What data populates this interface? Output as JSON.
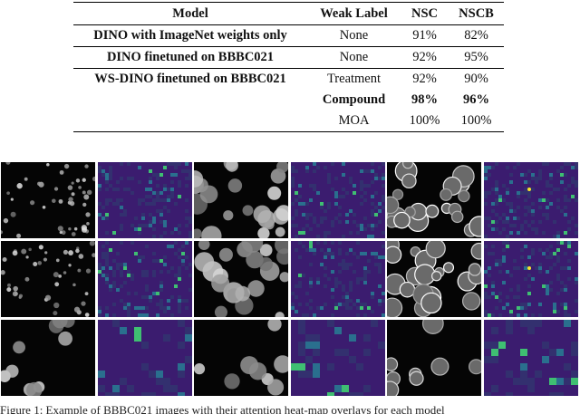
{
  "table": {
    "headers": [
      "Model",
      "Weak Label",
      "NSC",
      "NSCB"
    ],
    "rows": [
      {
        "model": "DINO with ImageNet weights only",
        "weak_label": "None",
        "nsc": "91%",
        "nscb": "82%"
      },
      {
        "model": "DINO finetuned on BBBC021",
        "weak_label": "None",
        "nsc": "92%",
        "nscb": "95%"
      },
      {
        "model": "WS-DINO finetuned on BBBC021",
        "weak_label": "Treatment",
        "nsc": "92%",
        "nscb": "90%"
      },
      {
        "model": "",
        "weak_label": "Compound",
        "nsc": "98%",
        "nscb": "96%"
      },
      {
        "model": "",
        "weak_label": "MOA",
        "nsc": "100%",
        "nscb": "100%"
      }
    ]
  },
  "colors": {
    "heatmap_base": "#3b1c6f",
    "heatmap_mid": "#2a6f8e",
    "heatmap_high": "#3fbf72",
    "heatmap_peak": "#f6e52b"
  },
  "caption": "Figure 1: Example of BBBC021 images with their attention heat-map overlays for each model"
}
